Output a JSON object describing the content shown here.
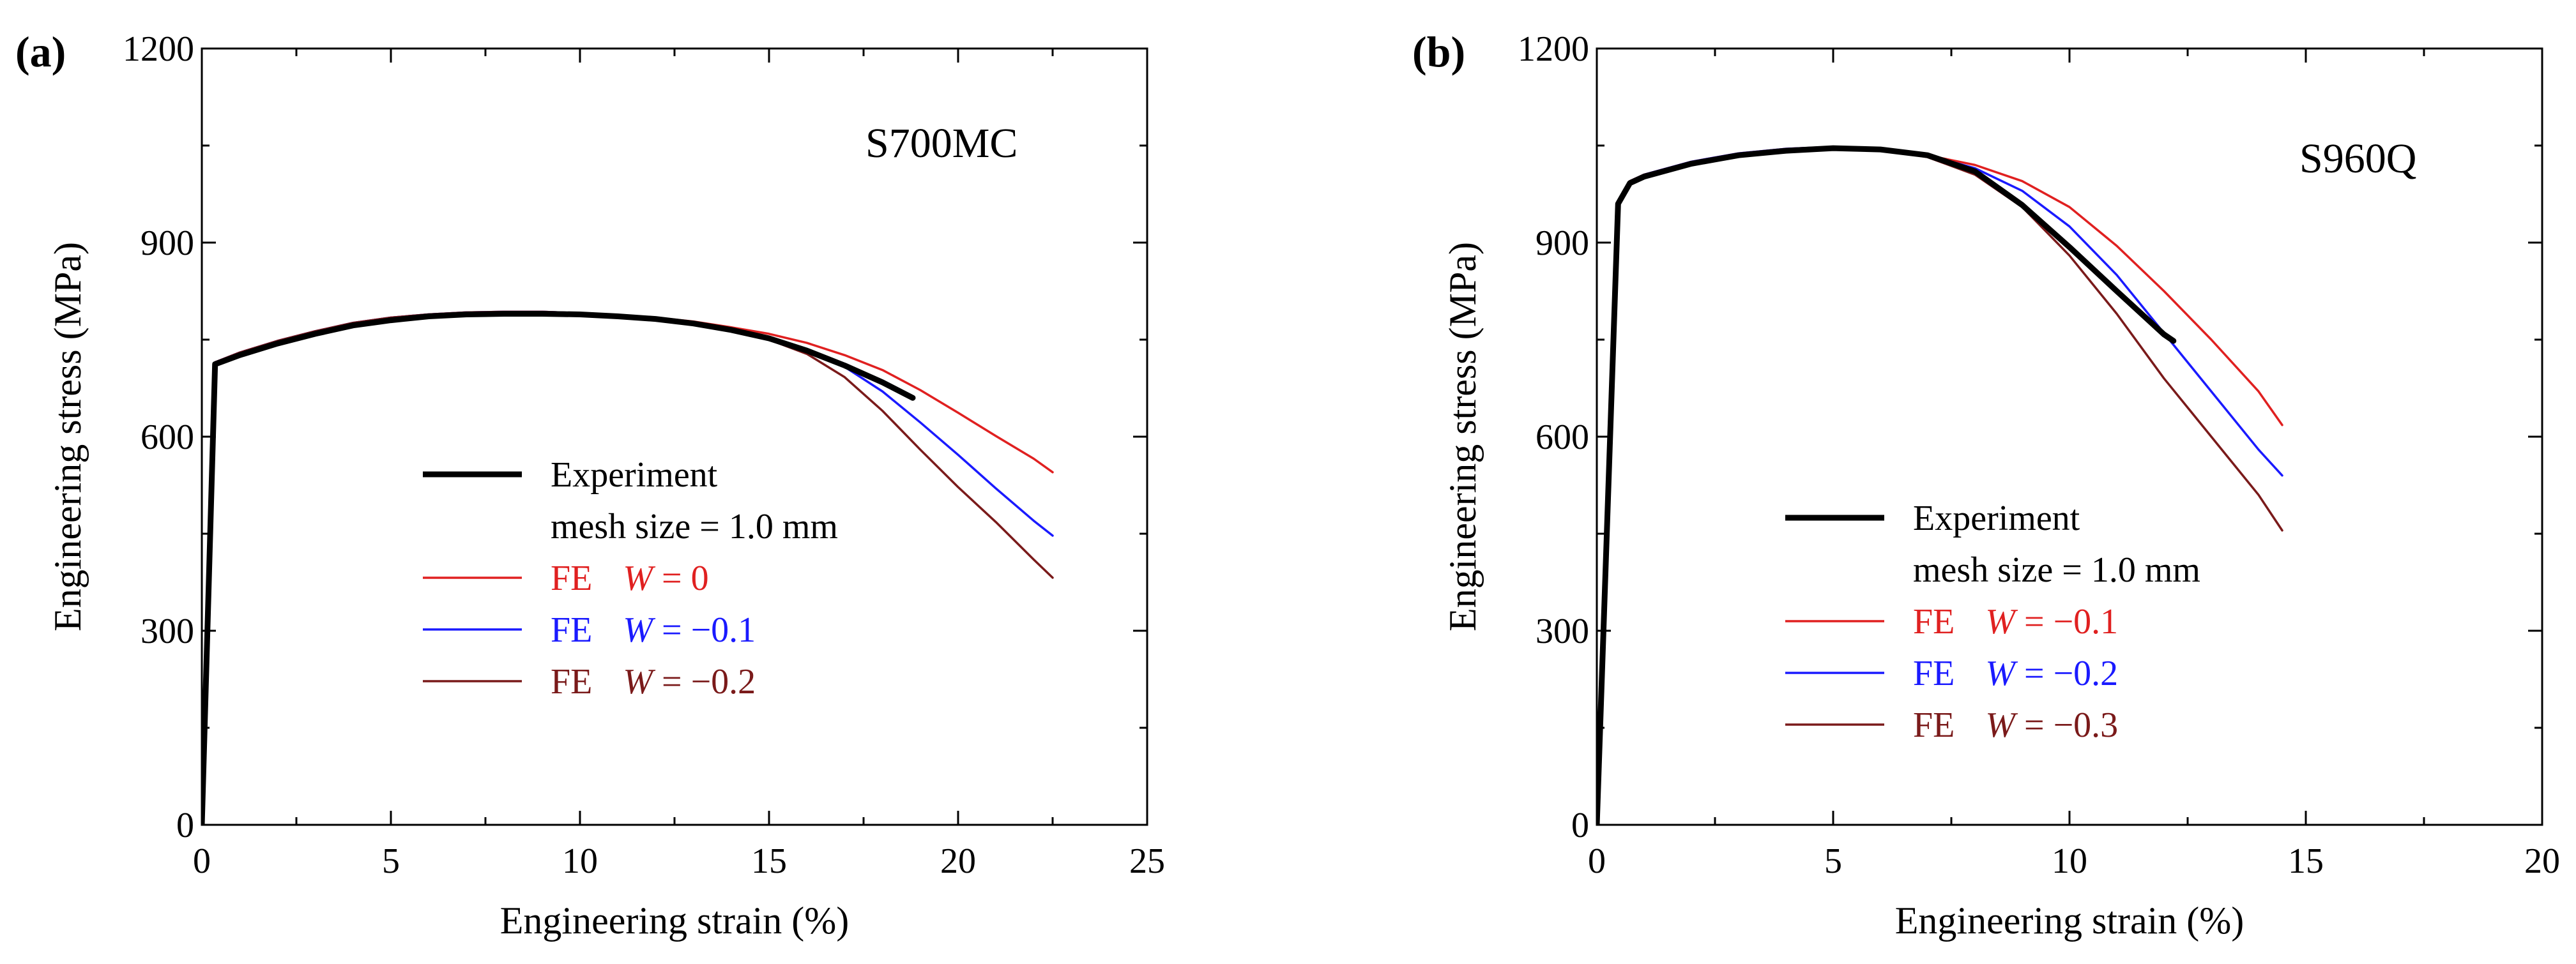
{
  "chart_data": [
    {
      "type": "line",
      "panel_label": "(a)",
      "annotation": "S700MC",
      "xlabel": "Engineering strain (%)",
      "ylabel": "Engineering stress (MPa)",
      "xlim": [
        0,
        25
      ],
      "ylim": [
        0,
        1200
      ],
      "xticks": [
        0,
        5,
        10,
        15,
        20,
        25
      ],
      "yticks": [
        0,
        300,
        600,
        900,
        1200
      ],
      "grid": false,
      "legend_position": "center",
      "legend": {
        "entries": [
          {
            "series": "Experiment",
            "text": "Experiment",
            "line_color": "#000000",
            "heavy": true
          },
          {
            "series": null,
            "text": "mesh size = 1.0 mm"
          },
          {
            "series": "FE W = 0",
            "prefix": "FE",
            "w": "W",
            "eq": " = 0",
            "line_color": "#e02020",
            "text_color": "#e02020"
          },
          {
            "series": "FE W = −0.1",
            "prefix": "FE",
            "w": "W",
            "eq": " = −0.1",
            "line_color": "#1a1aff",
            "text_color": "#1a1aff"
          },
          {
            "series": "FE W = −0.2",
            "prefix": "FE",
            "w": "W",
            "eq": " = −0.2",
            "line_color": "#7a1a1a",
            "text_color": "#7a1a1a"
          }
        ]
      },
      "series": [
        {
          "name": "FE W = 0",
          "color": "#e02020",
          "width": 3.5,
          "points": [
            [
              0,
              0
            ],
            [
              0.35,
              715
            ],
            [
              1,
              730
            ],
            [
              2,
              748
            ],
            [
              3,
              763
            ],
            [
              4,
              776
            ],
            [
              5,
              784
            ],
            [
              6,
              789
            ],
            [
              7,
              792
            ],
            [
              8,
              793
            ],
            [
              9,
              793
            ],
            [
              10,
              791
            ],
            [
              11,
              788
            ],
            [
              12,
              784
            ],
            [
              13,
              778
            ],
            [
              14,
              769
            ],
            [
              15,
              759
            ],
            [
              16,
              745
            ],
            [
              17,
              726
            ],
            [
              18,
              703
            ],
            [
              19,
              672
            ],
            [
              20,
              637
            ],
            [
              21,
              601
            ],
            [
              22,
              566
            ],
            [
              22.5,
              545
            ]
          ]
        },
        {
          "name": "FE W = −0.1",
          "color": "#1a1aff",
          "width": 3.5,
          "points": [
            [
              0,
              0
            ],
            [
              0.35,
              715
            ],
            [
              1,
              730
            ],
            [
              2,
              748
            ],
            [
              3,
              763
            ],
            [
              4,
              776
            ],
            [
              5,
              784
            ],
            [
              6,
              789
            ],
            [
              7,
              792
            ],
            [
              8,
              793
            ],
            [
              9,
              793
            ],
            [
              10,
              791
            ],
            [
              11,
              788
            ],
            [
              12,
              784
            ],
            [
              13,
              777
            ],
            [
              14,
              767
            ],
            [
              15,
              754
            ],
            [
              16,
              735
            ],
            [
              17,
              708
            ],
            [
              18,
              670
            ],
            [
              19,
              622
            ],
            [
              20,
              572
            ],
            [
              21,
              520
            ],
            [
              22,
              470
            ],
            [
              22.5,
              447
            ]
          ]
        },
        {
          "name": "FE W = −0.2",
          "color": "#7a1a1a",
          "width": 3.5,
          "points": [
            [
              0,
              0
            ],
            [
              0.35,
              715
            ],
            [
              1,
              730
            ],
            [
              2,
              748
            ],
            [
              3,
              763
            ],
            [
              4,
              776
            ],
            [
              5,
              784
            ],
            [
              6,
              789
            ],
            [
              7,
              792
            ],
            [
              8,
              793
            ],
            [
              9,
              793
            ],
            [
              10,
              791
            ],
            [
              11,
              788
            ],
            [
              12,
              783
            ],
            [
              13,
              776
            ],
            [
              14,
              765
            ],
            [
              15,
              750
            ],
            [
              16,
              728
            ],
            [
              17,
              692
            ],
            [
              18,
              640
            ],
            [
              19,
              580
            ],
            [
              20,
              522
            ],
            [
              21,
              468
            ],
            [
              22,
              410
            ],
            [
              22.5,
              382
            ]
          ]
        },
        {
          "name": "Experiment",
          "color": "#000000",
          "width": 9,
          "points": [
            [
              0,
              0
            ],
            [
              0.35,
              712
            ],
            [
              1,
              726
            ],
            [
              2,
              744
            ],
            [
              3,
              759
            ],
            [
              4,
              772
            ],
            [
              5,
              780
            ],
            [
              6,
              786
            ],
            [
              7,
              789
            ],
            [
              8,
              790
            ],
            [
              9,
              790
            ],
            [
              10,
              789
            ],
            [
              11,
              786
            ],
            [
              12,
              782
            ],
            [
              13,
              775
            ],
            [
              14,
              765
            ],
            [
              15,
              752
            ],
            [
              16,
              733
            ],
            [
              17,
              710
            ],
            [
              18,
              684
            ],
            [
              18.8,
              660
            ]
          ]
        }
      ]
    },
    {
      "type": "line",
      "panel_label": "(b)",
      "annotation": "S960Q",
      "xlabel": "Engineering strain (%)",
      "ylabel": "Engineering stress (MPa)",
      "xlim": [
        0,
        20
      ],
      "ylim": [
        0,
        1200
      ],
      "xticks": [
        0,
        5,
        10,
        15,
        20
      ],
      "yticks": [
        0,
        300,
        600,
        900,
        1200
      ],
      "grid": false,
      "legend_position": "bottom-center",
      "legend": {
        "entries": [
          {
            "series": "Experiment",
            "text": "Experiment",
            "line_color": "#000000",
            "heavy": true
          },
          {
            "series": null,
            "text": "mesh size = 1.0 mm"
          },
          {
            "series": "FE W = −0.1",
            "prefix": "FE",
            "w": "W",
            "eq": " = −0.1",
            "line_color": "#e02020",
            "text_color": "#e02020"
          },
          {
            "series": "FE W = −0.2",
            "prefix": "FE",
            "w": "W",
            "eq": " = −0.2",
            "line_color": "#1a1aff",
            "text_color": "#1a1aff"
          },
          {
            "series": "FE W = −0.3",
            "prefix": "FE",
            "w": "W",
            "eq": " = −0.3",
            "line_color": "#7a1a1a",
            "text_color": "#7a1a1a"
          }
        ]
      },
      "series": [
        {
          "name": "FE W = −0.1",
          "color": "#e02020",
          "width": 3.5,
          "points": [
            [
              0,
              0
            ],
            [
              0.45,
              965
            ],
            [
              0.7,
              995
            ],
            [
              1,
              1005
            ],
            [
              2,
              1025
            ],
            [
              3,
              1038
            ],
            [
              4,
              1045
            ],
            [
              5,
              1048
            ],
            [
              6,
              1045
            ],
            [
              7,
              1035
            ],
            [
              8,
              1020
            ],
            [
              9,
              995
            ],
            [
              10,
              955
            ],
            [
              11,
              895
            ],
            [
              12,
              825
            ],
            [
              13,
              750
            ],
            [
              14,
              670
            ],
            [
              14.5,
              618
            ]
          ]
        },
        {
          "name": "FE W = −0.2",
          "color": "#1a1aff",
          "width": 3.5,
          "points": [
            [
              0,
              0
            ],
            [
              0.45,
              965
            ],
            [
              0.7,
              995
            ],
            [
              1,
              1005
            ],
            [
              2,
              1025
            ],
            [
              3,
              1038
            ],
            [
              4,
              1045
            ],
            [
              5,
              1048
            ],
            [
              6,
              1045
            ],
            [
              7,
              1035
            ],
            [
              8,
              1015
            ],
            [
              9,
              980
            ],
            [
              10,
              925
            ],
            [
              11,
              850
            ],
            [
              12,
              760
            ],
            [
              13,
              670
            ],
            [
              14,
              580
            ],
            [
              14.5,
              540
            ]
          ]
        },
        {
          "name": "FE W = −0.3",
          "color": "#7a1a1a",
          "width": 3.5,
          "points": [
            [
              0,
              0
            ],
            [
              0.45,
              965
            ],
            [
              0.7,
              995
            ],
            [
              1,
              1005
            ],
            [
              2,
              1022
            ],
            [
              3,
              1036
            ],
            [
              4,
              1043
            ],
            [
              5,
              1047
            ],
            [
              6,
              1044
            ],
            [
              7,
              1032
            ],
            [
              8,
              1005
            ],
            [
              9,
              955
            ],
            [
              10,
              880
            ],
            [
              11,
              790
            ],
            [
              12,
              690
            ],
            [
              13,
              600
            ],
            [
              14,
              510
            ],
            [
              14.5,
              455
            ]
          ]
        },
        {
          "name": "Experiment",
          "color": "#000000",
          "width": 9,
          "points": [
            [
              0,
              0
            ],
            [
              0.45,
              960
            ],
            [
              0.7,
              992
            ],
            [
              1,
              1002
            ],
            [
              2,
              1022
            ],
            [
              3,
              1035
            ],
            [
              4,
              1042
            ],
            [
              5,
              1046
            ],
            [
              6,
              1044
            ],
            [
              7,
              1035
            ],
            [
              8,
              1010
            ],
            [
              9,
              958
            ],
            [
              10,
              893
            ],
            [
              11,
              825
            ],
            [
              12,
              758
            ],
            [
              12.2,
              748
            ]
          ]
        }
      ]
    }
  ]
}
